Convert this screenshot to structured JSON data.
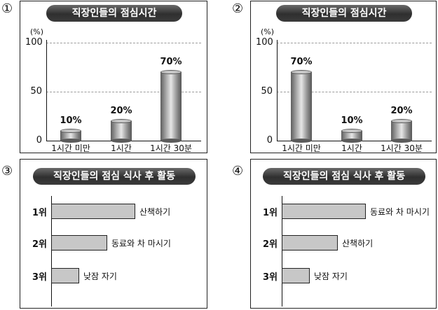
{
  "markers": [
    "①",
    "②",
    "③",
    "④"
  ],
  "chart_data": [
    {
      "type": "bar",
      "title": "직장인들의 점심시간",
      "ylabel": "(%)",
      "ylim": [
        0,
        100
      ],
      "yticks": [
        0,
        50,
        100
      ],
      "grid": true,
      "categories": [
        "1시간 미만",
        "1시간",
        "1시간 30분"
      ],
      "values": [
        10,
        20,
        70
      ],
      "value_labels": [
        "10%",
        "20%",
        "70%"
      ]
    },
    {
      "type": "bar",
      "title": "직장인들의 점심시간",
      "ylabel": "(%)",
      "ylim": [
        0,
        100
      ],
      "yticks": [
        0,
        50,
        100
      ],
      "grid": true,
      "categories": [
        "1시간 미만",
        "1시간",
        "1시간 30분"
      ],
      "values": [
        70,
        10,
        20
      ],
      "value_labels": [
        "70%",
        "10%",
        "20%"
      ]
    },
    {
      "type": "bar",
      "orientation": "horizontal",
      "title": "직장인들의 점심 식사 후 활동",
      "ranks": [
        "1위",
        "2위",
        "3위"
      ],
      "labels": [
        "산책하기",
        "동료와 차 마시기",
        "낮잠 자기"
      ],
      "values": [
        3,
        2,
        1
      ]
    },
    {
      "type": "bar",
      "orientation": "horizontal",
      "title": "직장인들의 점심 식사 후 활동",
      "ranks": [
        "1위",
        "2위",
        "3위"
      ],
      "labels": [
        "동료와 차 마시기",
        "산책하기",
        "낮잠 자기"
      ],
      "values": [
        3,
        2,
        1
      ]
    }
  ]
}
